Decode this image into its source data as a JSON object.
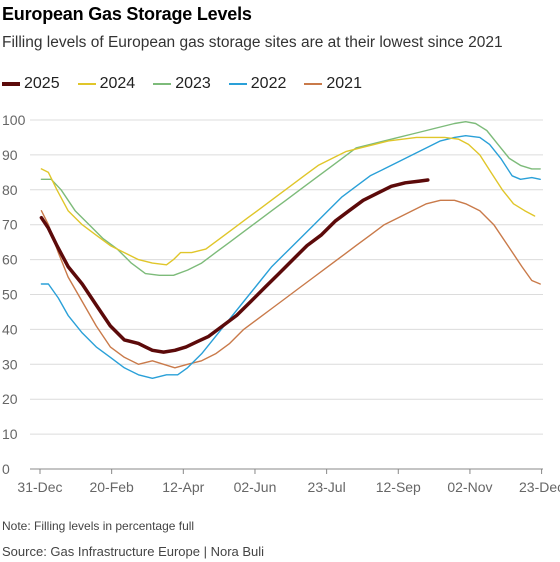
{
  "title": "European Gas Storage Levels",
  "subtitle": "Filling levels of European gas storage sites are at their lowest since 2021",
  "note": "Note: Filling levels in percentage full",
  "source": "Source: Gas Infrastructure Europe | Nora Buli",
  "chart_data": {
    "type": "line",
    "xlim": [
      0,
      358
    ],
    "ylim": [
      0,
      100
    ],
    "yticks": [
      0,
      10,
      20,
      30,
      40,
      50,
      60,
      70,
      80,
      90,
      100
    ],
    "xticks": [
      {
        "x": 0,
        "label": "31-Dec"
      },
      {
        "x": 51,
        "label": "20-Feb"
      },
      {
        "x": 102,
        "label": "12-Apr"
      },
      {
        "x": 153,
        "label": "02-Jun"
      },
      {
        "x": 204,
        "label": "23-Jul"
      },
      {
        "x": 255,
        "label": "12-Sep"
      },
      {
        "x": 306,
        "label": "02-Nov"
      },
      {
        "x": 357,
        "label": "23-Dec"
      }
    ],
    "grid": "horizontal",
    "legend_position": "top-left",
    "series": [
      {
        "name": "2021",
        "color": "#c97a4a",
        "points": [
          [
            1,
            74
          ],
          [
            6,
            70
          ],
          [
            13,
            62
          ],
          [
            20,
            55
          ],
          [
            30,
            48
          ],
          [
            40,
            41
          ],
          [
            50,
            35
          ],
          [
            60,
            32
          ],
          [
            70,
            30
          ],
          [
            80,
            31
          ],
          [
            88,
            30
          ],
          [
            96,
            29
          ],
          [
            105,
            30
          ],
          [
            115,
            31
          ],
          [
            125,
            33
          ],
          [
            135,
            36
          ],
          [
            145,
            40
          ],
          [
            155,
            43
          ],
          [
            165,
            46
          ],
          [
            175,
            49
          ],
          [
            185,
            52
          ],
          [
            195,
            55
          ],
          [
            205,
            58
          ],
          [
            215,
            61
          ],
          [
            225,
            64
          ],
          [
            235,
            67
          ],
          [
            245,
            70
          ],
          [
            255,
            72
          ],
          [
            265,
            74
          ],
          [
            275,
            76
          ],
          [
            285,
            77
          ],
          [
            295,
            77
          ],
          [
            303,
            76
          ],
          [
            313,
            74
          ],
          [
            323,
            70
          ],
          [
            333,
            64
          ],
          [
            343,
            58
          ],
          [
            350,
            54
          ],
          [
            356,
            53
          ]
        ]
      },
      {
        "name": "2022",
        "color": "#2aa0d8",
        "points": [
          [
            1,
            53
          ],
          [
            6,
            53
          ],
          [
            13,
            49
          ],
          [
            20,
            44
          ],
          [
            30,
            39
          ],
          [
            40,
            35
          ],
          [
            50,
            32
          ],
          [
            60,
            29
          ],
          [
            70,
            27
          ],
          [
            80,
            26
          ],
          [
            90,
            27
          ],
          [
            98,
            27
          ],
          [
            105,
            29
          ],
          [
            115,
            33
          ],
          [
            125,
            38
          ],
          [
            135,
            43
          ],
          [
            145,
            48
          ],
          [
            155,
            53
          ],
          [
            165,
            58
          ],
          [
            175,
            62
          ],
          [
            185,
            66
          ],
          [
            195,
            70
          ],
          [
            205,
            74
          ],
          [
            215,
            78
          ],
          [
            225,
            81
          ],
          [
            235,
            84
          ],
          [
            245,
            86
          ],
          [
            255,
            88
          ],
          [
            265,
            90
          ],
          [
            275,
            92
          ],
          [
            285,
            94
          ],
          [
            295,
            95
          ],
          [
            303,
            95.5
          ],
          [
            313,
            95
          ],
          [
            320,
            93
          ],
          [
            328,
            89
          ],
          [
            336,
            84
          ],
          [
            342,
            83
          ],
          [
            350,
            83.5
          ],
          [
            356,
            83
          ]
        ]
      },
      {
        "name": "2023",
        "color": "#7dbb7a",
        "points": [
          [
            1,
            83
          ],
          [
            8,
            83
          ],
          [
            15,
            80
          ],
          [
            25,
            74
          ],
          [
            35,
            70
          ],
          [
            45,
            66
          ],
          [
            55,
            63
          ],
          [
            65,
            59
          ],
          [
            75,
            56
          ],
          [
            85,
            55.5
          ],
          [
            95,
            55.5
          ],
          [
            105,
            57
          ],
          [
            115,
            59
          ],
          [
            125,
            62
          ],
          [
            135,
            65
          ],
          [
            145,
            68
          ],
          [
            155,
            71
          ],
          [
            165,
            74
          ],
          [
            175,
            77
          ],
          [
            185,
            80
          ],
          [
            195,
            83
          ],
          [
            205,
            86
          ],
          [
            215,
            89
          ],
          [
            225,
            92
          ],
          [
            235,
            93
          ],
          [
            245,
            94
          ],
          [
            255,
            95
          ],
          [
            265,
            96
          ],
          [
            275,
            97
          ],
          [
            285,
            98
          ],
          [
            295,
            99
          ],
          [
            303,
            99.5
          ],
          [
            310,
            99
          ],
          [
            318,
            97
          ],
          [
            326,
            93
          ],
          [
            334,
            89
          ],
          [
            342,
            87
          ],
          [
            350,
            86
          ],
          [
            356,
            86
          ]
        ]
      },
      {
        "name": "2024",
        "color": "#e0c62a",
        "points": [
          [
            1,
            86
          ],
          [
            6,
            85
          ],
          [
            12,
            80
          ],
          [
            20,
            74
          ],
          [
            30,
            70
          ],
          [
            40,
            67
          ],
          [
            50,
            64
          ],
          [
            60,
            62
          ],
          [
            70,
            60
          ],
          [
            80,
            59
          ],
          [
            90,
            58.5
          ],
          [
            95,
            60
          ],
          [
            100,
            62
          ],
          [
            108,
            62
          ],
          [
            118,
            63
          ],
          [
            128,
            66
          ],
          [
            138,
            69
          ],
          [
            148,
            72
          ],
          [
            158,
            75
          ],
          [
            168,
            78
          ],
          [
            178,
            81
          ],
          [
            188,
            84
          ],
          [
            198,
            87
          ],
          [
            208,
            89
          ],
          [
            218,
            91
          ],
          [
            228,
            92
          ],
          [
            238,
            93
          ],
          [
            248,
            94
          ],
          [
            258,
            94.5
          ],
          [
            268,
            95
          ],
          [
            278,
            95
          ],
          [
            288,
            95
          ],
          [
            298,
            94.5
          ],
          [
            305,
            93
          ],
          [
            313,
            90
          ],
          [
            321,
            85
          ],
          [
            329,
            80
          ],
          [
            337,
            76
          ],
          [
            345,
            74
          ],
          [
            352,
            72.5
          ]
        ]
      },
      {
        "name": "2025",
        "color": "#5c0a0a",
        "width": 3.5,
        "points": [
          [
            1,
            72
          ],
          [
            6,
            69
          ],
          [
            12,
            64
          ],
          [
            20,
            58
          ],
          [
            30,
            53
          ],
          [
            40,
            47
          ],
          [
            50,
            41
          ],
          [
            60,
            37
          ],
          [
            70,
            36
          ],
          [
            75,
            35
          ],
          [
            80,
            34
          ],
          [
            88,
            33.5
          ],
          [
            96,
            34
          ],
          [
            104,
            35
          ],
          [
            112,
            36.5
          ],
          [
            120,
            38
          ],
          [
            130,
            41
          ],
          [
            140,
            44
          ],
          [
            150,
            48
          ],
          [
            160,
            52
          ],
          [
            170,
            56
          ],
          [
            180,
            60
          ],
          [
            190,
            64
          ],
          [
            200,
            67
          ],
          [
            210,
            71
          ],
          [
            220,
            74
          ],
          [
            230,
            77
          ],
          [
            240,
            79
          ],
          [
            250,
            81
          ],
          [
            260,
            82
          ],
          [
            270,
            82.5
          ],
          [
            276,
            82.8
          ]
        ]
      }
    ],
    "legend_order": [
      "2025",
      "2024",
      "2023",
      "2022",
      "2021"
    ]
  }
}
